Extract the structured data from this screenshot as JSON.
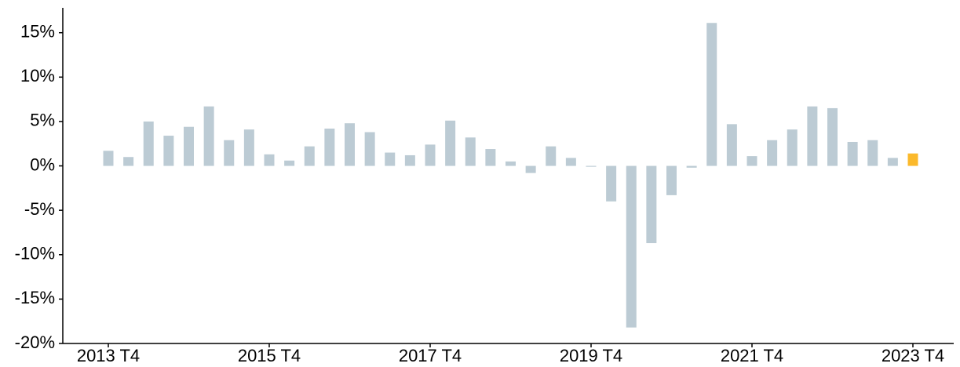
{
  "chart_data": {
    "type": "bar",
    "categories": [
      "2013 T4",
      null,
      null,
      null,
      null,
      null,
      null,
      null,
      "2015 T4",
      null,
      null,
      null,
      null,
      null,
      null,
      null,
      "2017 T4",
      null,
      null,
      null,
      null,
      null,
      null,
      null,
      "2019 T4",
      null,
      null,
      null,
      null,
      null,
      null,
      null,
      "2021 T4",
      null,
      null,
      null,
      null,
      null,
      null,
      null,
      "2023 T4"
    ],
    "values": [
      1.7,
      1.0,
      5.0,
      3.4,
      4.4,
      6.7,
      2.9,
      4.1,
      1.3,
      0.6,
      2.2,
      4.2,
      4.8,
      3.8,
      1.5,
      1.2,
      2.4,
      5.1,
      3.2,
      1.9,
      0.5,
      -0.8,
      2.2,
      0.9,
      -0.1,
      -4.0,
      -18.2,
      -8.7,
      -3.3,
      -0.2,
      16.1,
      4.7,
      1.1,
      2.9,
      4.1,
      6.7,
      6.5,
      2.7,
      2.9,
      0.9,
      1.4
    ],
    "colors": [
      "#bccbd4",
      "#bccbd4",
      "#bccbd4",
      "#bccbd4",
      "#bccbd4",
      "#bccbd4",
      "#bccbd4",
      "#bccbd4",
      "#bccbd4",
      "#bccbd4",
      "#bccbd4",
      "#bccbd4",
      "#bccbd4",
      "#bccbd4",
      "#bccbd4",
      "#bccbd4",
      "#bccbd4",
      "#bccbd4",
      "#bccbd4",
      "#bccbd4",
      "#bccbd4",
      "#bccbd4",
      "#bccbd4",
      "#bccbd4",
      "#bccbd4",
      "#bccbd4",
      "#bccbd4",
      "#bccbd4",
      "#bccbd4",
      "#bccbd4",
      "#bccbd4",
      "#bccbd4",
      "#bccbd4",
      "#bccbd4",
      "#bccbd4",
      "#bccbd4",
      "#bccbd4",
      "#bccbd4",
      "#bccbd4",
      "#bccbd4",
      "#fbb92b"
    ],
    "ylim": [
      -20,
      17.8
    ],
    "yticks": [
      {
        "value": -20,
        "label": "-20%"
      },
      {
        "value": -15,
        "label": "-15%"
      },
      {
        "value": -10,
        "label": "-10%"
      },
      {
        "value": -5,
        "label": "-5%"
      },
      {
        "value": 0,
        "label": "0%"
      },
      {
        "value": 5,
        "label": "5%"
      },
      {
        "value": 10,
        "label": "10%"
      },
      {
        "value": 15,
        "label": "15%"
      }
    ],
    "grid": false
  }
}
